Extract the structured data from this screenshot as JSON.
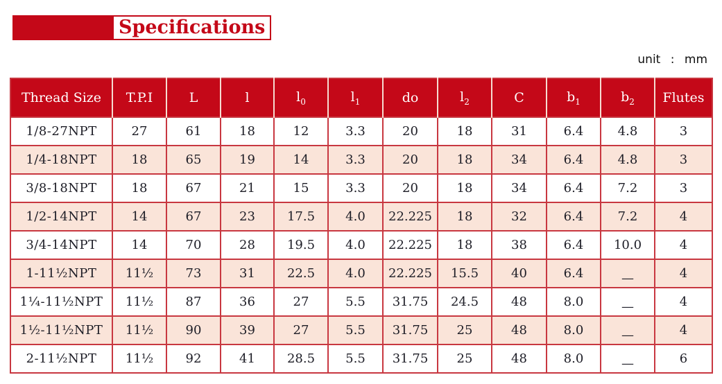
{
  "page": {
    "title": "Specifications",
    "unit_label": "unit : mm"
  },
  "colors": {
    "brand_red": "#c40818",
    "table_border_red": "#c83740",
    "row_alt_pink": "#fae4d9",
    "header_text": "#ffffff",
    "body_text": "#1d1d26"
  },
  "table": {
    "columns": [
      {
        "label": "Thread Size"
      },
      {
        "label": "T.P.I"
      },
      {
        "label": "L"
      },
      {
        "label": "l"
      },
      {
        "label": "l",
        "sub": "0"
      },
      {
        "label": "l",
        "sub": "1"
      },
      {
        "label": "do"
      },
      {
        "label": "l",
        "sub": "2"
      },
      {
        "label": "C"
      },
      {
        "label": "b",
        "sub": "1"
      },
      {
        "label": "b",
        "sub": "2"
      },
      {
        "label": "Flutes"
      }
    ],
    "rows": [
      [
        "1/8-27NPT",
        "27",
        "61",
        "18",
        "12",
        "3.3",
        "20",
        "18",
        "31",
        "6.4",
        "4.8",
        "3"
      ],
      [
        "1/4-18NPT",
        "18",
        "65",
        "19",
        "14",
        "3.3",
        "20",
        "18",
        "34",
        "6.4",
        "4.8",
        "3"
      ],
      [
        "3/8-18NPT",
        "18",
        "67",
        "21",
        "15",
        "3.3",
        "20",
        "18",
        "34",
        "6.4",
        "7.2",
        "3"
      ],
      [
        "1/2-14NPT",
        "14",
        "67",
        "23",
        "17.5",
        "4.0",
        "22.225",
        "18",
        "32",
        "6.4",
        "7.2",
        "4"
      ],
      [
        "3/4-14NPT",
        "14",
        "70",
        "28",
        "19.5",
        "4.0",
        "22.225",
        "18",
        "38",
        "6.4",
        "10.0",
        "4"
      ],
      [
        "1-11½NPT",
        "11½",
        "73",
        "31",
        "22.5",
        "4.0",
        "22.225",
        "15.5",
        "40",
        "6.4",
        "—",
        "4"
      ],
      [
        "1¼-11½NPT",
        "11½",
        "87",
        "36",
        "27",
        "5.5",
        "31.75",
        "24.5",
        "48",
        "8.0",
        "—",
        "4"
      ],
      [
        "1½-11½NPT",
        "11½",
        "90",
        "39",
        "27",
        "5.5",
        "31.75",
        "25",
        "48",
        "8.0",
        "—",
        "4"
      ],
      [
        "2-11½NPT",
        "11½",
        "92",
        "41",
        "28.5",
        "5.5",
        "31.75",
        "25",
        "48",
        "8.0",
        "—",
        "6"
      ]
    ]
  }
}
